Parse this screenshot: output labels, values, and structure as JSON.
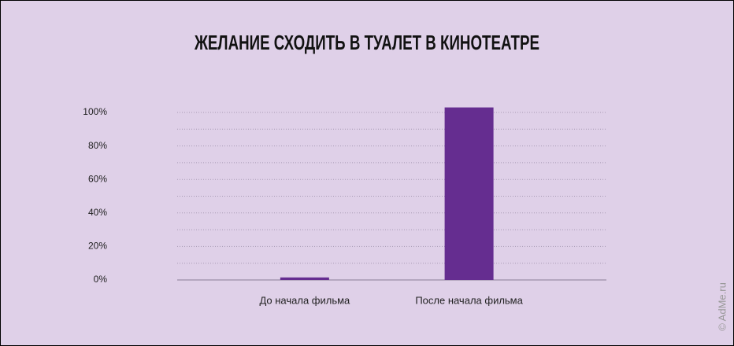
{
  "chart_data": {
    "type": "bar",
    "title": "ЖЕЛАНИЕ СХОДИТЬ В ТУАЛЕТ В КИНОТЕАТРЕ",
    "categories": [
      "До начала фильма",
      "После начала фильма"
    ],
    "values": [
      1.5,
      103
    ],
    "color": "#652d90",
    "ylim": [
      0,
      100
    ],
    "yticks": [
      {
        "value": 0,
        "label": "0%"
      },
      {
        "value": 20,
        "label": "20%"
      },
      {
        "value": 40,
        "label": "40%"
      },
      {
        "value": 60,
        "label": "60%"
      },
      {
        "value": 80,
        "label": "80%"
      },
      {
        "value": 100,
        "label": "100%"
      }
    ],
    "minor_yticks": [
      10,
      30,
      50,
      70,
      90
    ],
    "grid": true,
    "watermark": "© AdMe.ru"
  }
}
